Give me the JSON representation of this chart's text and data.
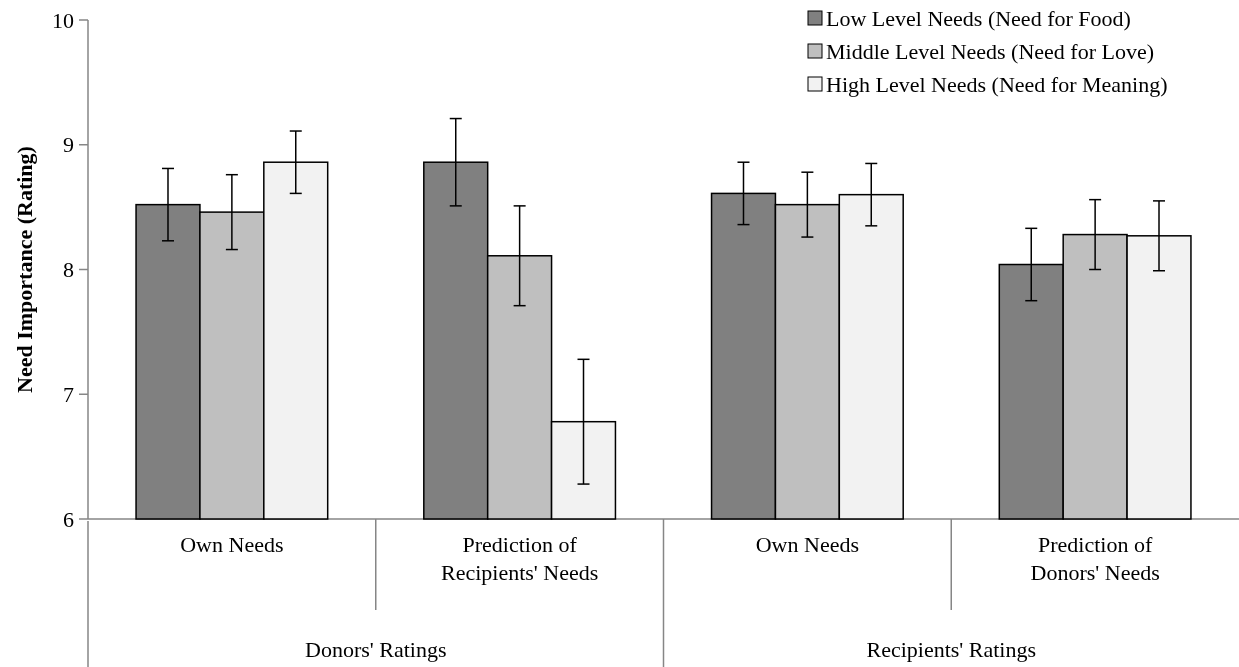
{
  "chart_data": {
    "type": "bar",
    "ylabel": "Need Importance (Rating)",
    "categories": [
      "Own Needs",
      "Prediction of Recipients' Needs",
      "Own Needs",
      "Prediction of Donors' Needs"
    ],
    "series": [
      {
        "name": "Low Level Needs (Need for Food)",
        "color": "#808080",
        "values": [
          8.52,
          8.86,
          8.61,
          8.04
        ],
        "errors": [
          0.29,
          0.35,
          0.25,
          0.29
        ]
      },
      {
        "name": "Middle Level Needs (Need for Love)",
        "color": "#bfbfbf",
        "values": [
          8.46,
          8.11,
          8.52,
          8.28
        ],
        "errors": [
          0.3,
          0.4,
          0.26,
          0.28
        ]
      },
      {
        "name": "High Level Needs (Need for Meaning)",
        "color": "#f2f2f2",
        "values": [
          8.86,
          6.78,
          8.6,
          8.27
        ],
        "errors": [
          0.25,
          0.5,
          0.25,
          0.28
        ]
      }
    ],
    "annotations": [
      "Donors' Ratings",
      "Recipients' Ratings"
    ],
    "ylim": [
      6,
      10
    ],
    "yticks": [
      6,
      7,
      8,
      9,
      10
    ],
    "grid": false,
    "legend": "top right"
  }
}
